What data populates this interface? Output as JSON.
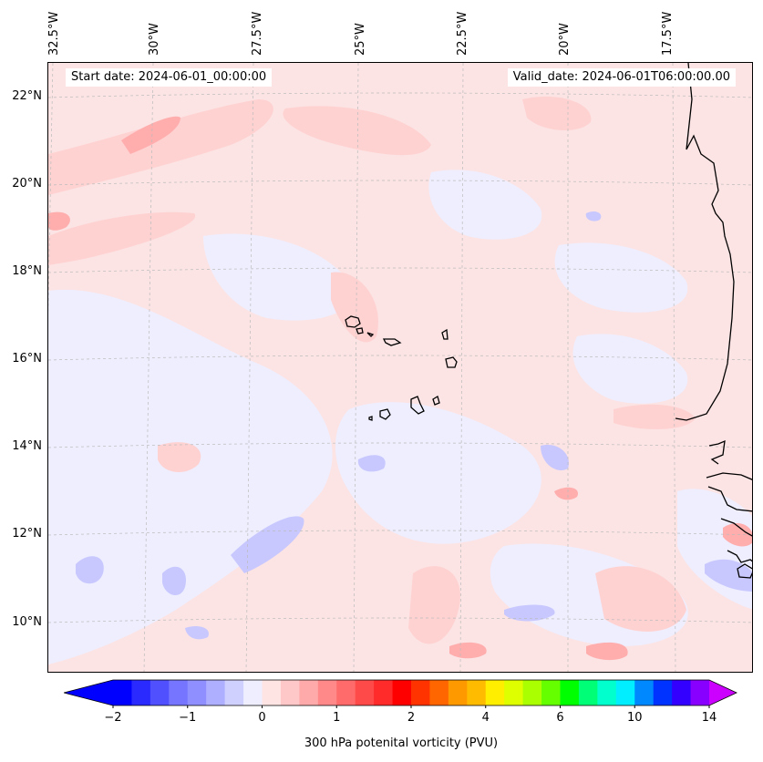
{
  "map": {
    "start_date_text": "Start date: 2024-06-01_00:00:00",
    "valid_date_text": "Valid_date: 2024-06-01T06:00:00.00",
    "lon_labels": [
      "32.5°W",
      "30°W",
      "27.5°W",
      "25°W",
      "22.5°W",
      "20°W",
      "17.5°W"
    ],
    "lat_labels": [
      "22°N",
      "20°N",
      "18°N",
      "16°N",
      "14°N",
      "12°N",
      "10°N"
    ],
    "colors": {
      "background_field": "#fbe6e6",
      "light_blue": "#eeeeff",
      "blue": "#c8c8ff",
      "light_pink": "#ffd6d6",
      "pink": "#ffb0b0",
      "coastline": "#000000",
      "gridline": "#bbbbbb"
    }
  },
  "colorbar": {
    "label": "300 hPa potenital vorticity (PVU)",
    "tick_labels": [
      "−2",
      "−1",
      "0",
      "1",
      "2",
      "4",
      "6",
      "10",
      "14"
    ],
    "colors": [
      "#0000ff",
      "#2a2aff",
      "#5050ff",
      "#7575ff",
      "#8f8fff",
      "#afafff",
      "#d0d0ff",
      "#eeeeff",
      "#ffe4e4",
      "#ffc8c8",
      "#ffaaaa",
      "#ff8888",
      "#ff6a6a",
      "#ff4a4a",
      "#ff2a2a",
      "#ff0000",
      "#ff3300",
      "#ff6600",
      "#ff9900",
      "#ffbb00",
      "#ffee00",
      "#ddff00",
      "#aaff00",
      "#66ff00",
      "#00ff00",
      "#00ff77",
      "#00ffcc",
      "#00eeff",
      "#0088ff",
      "#0033ff",
      "#3300ff",
      "#8800ff"
    ],
    "extend_min_color": "#0000ff",
    "extend_max_color": "#cc00ff"
  }
}
